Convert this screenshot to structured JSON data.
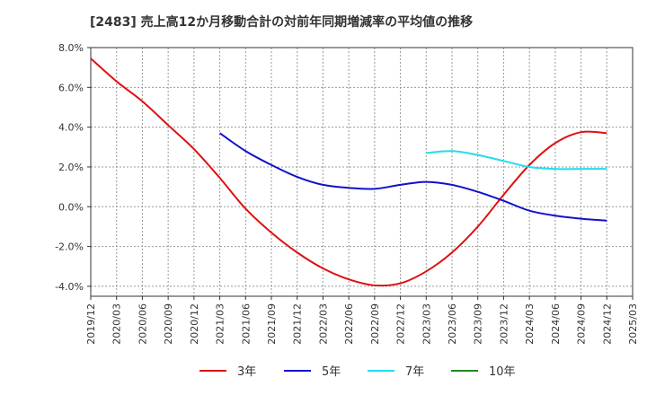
{
  "chart_data": {
    "type": "line",
    "title": "[2483]  売上高12か月移動合計の対前年同期増減率の平均値の推移",
    "xlabel": "",
    "ylabel": "",
    "x_ticks": [
      "2019/12",
      "2020/03",
      "2020/06",
      "2020/09",
      "2020/12",
      "2021/03",
      "2021/06",
      "2021/09",
      "2021/12",
      "2022/03",
      "2022/06",
      "2022/09",
      "2022/12",
      "2023/03",
      "2023/06",
      "2023/09",
      "2023/12",
      "2024/03",
      "2024/06",
      "2024/09",
      "2024/12",
      "2025/03"
    ],
    "y_ticks": [
      "8.0%",
      "6.0%",
      "4.0%",
      "2.0%",
      "0.0%",
      "-2.0%",
      "-4.0%"
    ],
    "ylim": [
      -4.5,
      8.0
    ],
    "grid": true,
    "legend_position": "bottom",
    "series": [
      {
        "name": "3年",
        "color": "#dd1111",
        "x": [
          "2019/12",
          "2020/03",
          "2020/06",
          "2020/09",
          "2020/12",
          "2021/03",
          "2021/06",
          "2021/09",
          "2021/12",
          "2022/03",
          "2022/06",
          "2022/09",
          "2022/12",
          "2023/03",
          "2023/06",
          "2023/09",
          "2023/12",
          "2024/03",
          "2024/06",
          "2024/09",
          "2024/12"
        ],
        "values": [
          7.45,
          6.3,
          5.3,
          4.1,
          2.9,
          1.45,
          -0.1,
          -1.3,
          -2.3,
          -3.1,
          -3.65,
          -3.95,
          -3.85,
          -3.25,
          -2.3,
          -1.0,
          0.6,
          2.1,
          3.2,
          3.75,
          3.7
        ]
      },
      {
        "name": "5年",
        "color": "#1111cc",
        "x": [
          "2021/03",
          "2021/06",
          "2021/09",
          "2021/12",
          "2022/03",
          "2022/06",
          "2022/09",
          "2022/12",
          "2023/03",
          "2023/06",
          "2023/09",
          "2023/12",
          "2024/03",
          "2024/06",
          "2024/09",
          "2024/12"
        ],
        "values": [
          3.7,
          2.8,
          2.1,
          1.5,
          1.1,
          0.95,
          0.9,
          1.1,
          1.25,
          1.1,
          0.75,
          0.3,
          -0.2,
          -0.45,
          -0.6,
          -0.7
        ]
      },
      {
        "name": "7年",
        "color": "#22ddee",
        "x": [
          "2023/03",
          "2023/06",
          "2023/09",
          "2023/12",
          "2024/03",
          "2024/06",
          "2024/09",
          "2024/12"
        ],
        "values": [
          2.7,
          2.8,
          2.6,
          2.3,
          2.0,
          1.9,
          1.9,
          1.9
        ]
      },
      {
        "name": "10年",
        "color": "#228822",
        "x": [],
        "values": []
      }
    ]
  }
}
